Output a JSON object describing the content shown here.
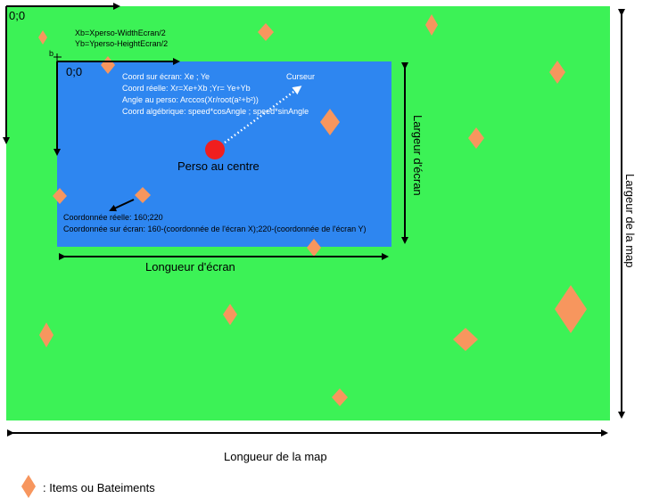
{
  "colors": {
    "map_green": "#3cf256",
    "screen_blue": "#2e86f0",
    "item_orange": "#f7965e",
    "player_red": "#f01e1e",
    "white": "#ffffff",
    "black": "#000000"
  },
  "map": {
    "origin_label": "0;0",
    "length_label": "Longueur de la map",
    "width_label": "Largeur de la map"
  },
  "formulas": {
    "xb": "Xb=Xperso-WidthEcran/2",
    "yb": "Yb=Yperso-HeightEcran/2",
    "b_label": "b"
  },
  "screen": {
    "origin_label": "0;0",
    "length_label": "Longueur d'écran",
    "width_label": "Largeur d'écran",
    "cursor_label": "Curseur",
    "player_label": "Perso au centre",
    "coords": [
      "Coord sur écran: Xe ; Ye",
      "Coord réelle: Xr=Xe+Xb ;Yr= Ye+Yb",
      "Angle au perso: Arccos(Xr/root(a²+b²))",
      "Coord algébrique: speed*cosAngle ; speed*sinAngle"
    ],
    "real_coord": "Coordonnée réelle: 160;220",
    "screen_coord": "Coordonnée sur écran: 160-(coordonnée de l'écran X);220-(coordonnée de l'écran Y)"
  },
  "legend": {
    "label": ": Items ou Bateiments",
    "icon": "orange-diamond-icon"
  }
}
